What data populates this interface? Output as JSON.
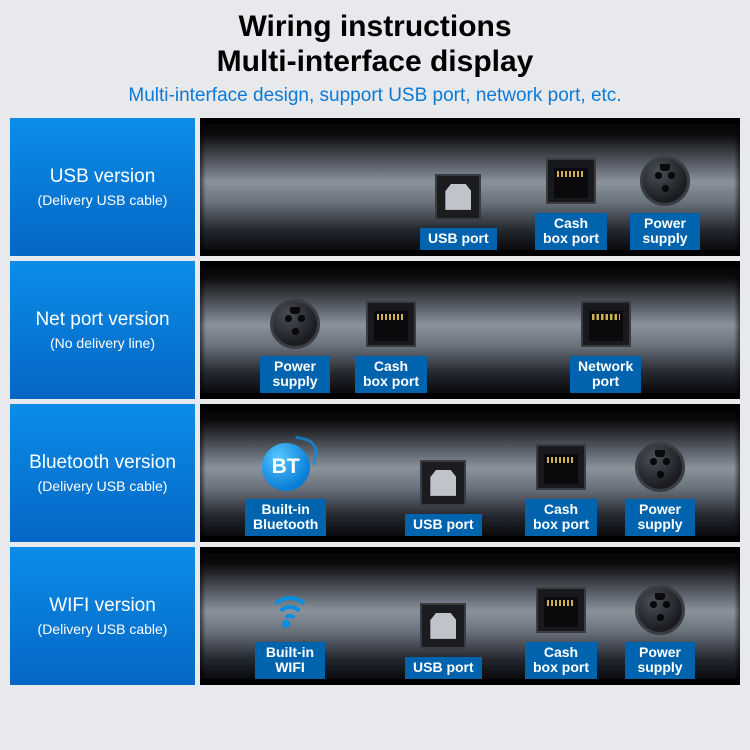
{
  "colors": {
    "page_bg": "#e8e9ed",
    "title": "#000000",
    "subtitle": "#0a7ad6",
    "label_grad_top": "#0a8de8",
    "label_grad_bot": "#0566c4",
    "tag_bg": "#0063ad",
    "icon_blue": "#0a8ee0"
  },
  "header": {
    "title_line1": "Wiring instructions",
    "title_line2": "Multi-interface display",
    "subtitle": "Multi-interface design, support USB port, network port, etc."
  },
  "rows": [
    {
      "name": "USB version",
      "note": "(Delivery USB cable)",
      "ports": [
        {
          "kind": "usb-b",
          "pos": 220,
          "label": "USB port"
        },
        {
          "kind": "rj",
          "pos": 335,
          "label": "Cash\nbox port"
        },
        {
          "kind": "din",
          "pos": 430,
          "label": "Power\nsupply"
        }
      ]
    },
    {
      "name": "Net port version",
      "note": "(No delivery line)",
      "ports": [
        {
          "kind": "din",
          "pos": 60,
          "label": "Power\nsupply"
        },
        {
          "kind": "rj",
          "pos": 155,
          "label": "Cash\nbox port"
        },
        {
          "kind": "rj-net",
          "pos": 370,
          "label": "Network\nport"
        }
      ]
    },
    {
      "name": "Bluetooth version",
      "note": "(Delivery USB cable)",
      "ports": [
        {
          "kind": "bt",
          "pos": 45,
          "label": "Built-in\nBluetooth"
        },
        {
          "kind": "usb-b",
          "pos": 205,
          "label": "USB port"
        },
        {
          "kind": "rj",
          "pos": 325,
          "label": "Cash\nbox port"
        },
        {
          "kind": "din",
          "pos": 425,
          "label": "Power\nsupply"
        }
      ]
    },
    {
      "name": "WIFI version",
      "note": "(Delivery USB cable)",
      "ports": [
        {
          "kind": "wifi",
          "pos": 55,
          "label": "Built-in\nWIFI"
        },
        {
          "kind": "usb-b",
          "pos": 205,
          "label": "USB port"
        },
        {
          "kind": "rj",
          "pos": 325,
          "label": "Cash\nbox port"
        },
        {
          "kind": "din",
          "pos": 425,
          "label": "Power\nsupply"
        }
      ]
    }
  ]
}
